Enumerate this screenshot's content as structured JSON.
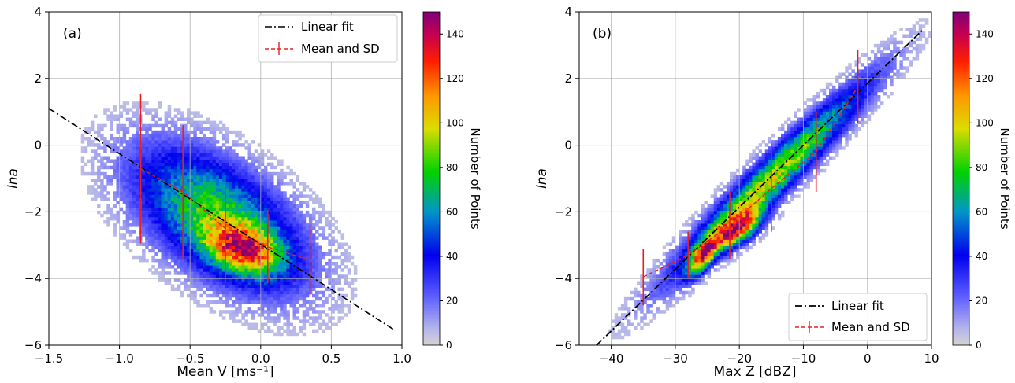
{
  "chart_data": [
    {
      "type": "heatmap",
      "panel_label": "(a)",
      "xlabel": "Mean V [ms⁻¹]",
      "ylabel": "lna",
      "xlim": [
        -1.5,
        1.0
      ],
      "ylim": [
        -6,
        4
      ],
      "xticks": [
        "−1.5",
        "−1.0",
        "−0.5",
        "0.0",
        "0.5",
        "1.0"
      ],
      "xtick_values": [
        -1.5,
        -1.0,
        -0.5,
        0.0,
        0.5,
        1.0
      ],
      "yticks": [
        "−6",
        "−4",
        "−2",
        "0",
        "2",
        "4"
      ],
      "ytick_values": [
        -6,
        -4,
        -2,
        0,
        2,
        4
      ],
      "grid": true,
      "legend_position": "top-right",
      "legend": [
        "Linear fit",
        "Mean and SD"
      ],
      "linear_fit": {
        "x": [
          -1.5,
          0.95
        ],
        "y": [
          1.1,
          -5.55
        ]
      },
      "mean_sd": {
        "x": [
          -0.85,
          -0.55,
          -0.25,
          0.05,
          0.35
        ],
        "mean": [
          -0.7,
          -1.4,
          -2.5,
          -3.05,
          -3.45
        ],
        "sd": [
          2.25,
          2.0,
          1.6,
          1.1,
          1.05
        ]
      },
      "density_clusters": [
        {
          "cx": -0.3,
          "cy": -2.2,
          "sx": 0.42,
          "sy": 1.5,
          "rho": -0.55,
          "weight": 1.0
        },
        {
          "cx": -0.12,
          "cy": -3.1,
          "sx": 0.17,
          "sy": 0.5,
          "rho": -0.3,
          "weight": 1.0
        }
      ],
      "colorbar": {
        "label": "Number of Points",
        "min": 0,
        "max": 150,
        "ticks": [
          0,
          20,
          40,
          60,
          80,
          100,
          120,
          140
        ]
      }
    },
    {
      "type": "heatmap",
      "panel_label": "(b)",
      "xlabel": "Max Z [dBZ]",
      "ylabel": "lna",
      "xlim": [
        -45,
        10
      ],
      "ylim": [
        -6,
        4
      ],
      "xticks": [
        "−40",
        "−30",
        "−20",
        "−10",
        "0",
        "10"
      ],
      "xtick_values": [
        -40,
        -30,
        -20,
        -10,
        0,
        10
      ],
      "yticks": [
        "−6",
        "−4",
        "−2",
        "0",
        "2",
        "4"
      ],
      "ytick_values": [
        -6,
        -4,
        -2,
        0,
        2,
        4
      ],
      "grid": true,
      "legend_position": "bottom-right",
      "legend": [
        "Linear fit",
        "Mean and SD"
      ],
      "linear_fit": {
        "x": [
          -42.3,
          8.6
        ],
        "y": [
          -6.0,
          3.45
        ]
      },
      "mean_sd": {
        "x": [
          -35,
          -28,
          -21.5,
          -15,
          -8,
          -1.5
        ],
        "mean": [
          -3.95,
          -3.3,
          -2.4,
          -1.3,
          -0.2,
          1.75
        ],
        "sd": [
          0.85,
          0.7,
          1.0,
          1.3,
          1.2,
          1.1
        ]
      },
      "density_clusters": [
        {
          "cx": -15,
          "cy": -1.0,
          "sx": 10.5,
          "sy": 2.0,
          "rho": 0.96,
          "weight": 1.0
        },
        {
          "cx": -25.5,
          "cy": -3.3,
          "sx": 1.6,
          "sy": 0.4,
          "rho": 0.7,
          "weight": 1.0
        },
        {
          "cx": -20,
          "cy": -2.5,
          "sx": 2.5,
          "sy": 0.4,
          "rho": 0.6,
          "weight": 1.0
        }
      ],
      "colorbar": {
        "label": "Number of Points",
        "min": 0,
        "max": 150,
        "ticks": [
          0,
          20,
          40,
          60,
          80,
          100,
          120,
          140
        ]
      }
    }
  ]
}
